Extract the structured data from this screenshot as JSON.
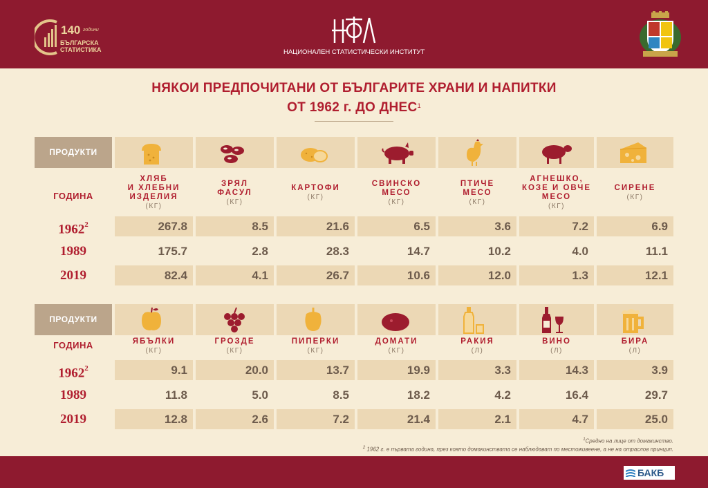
{
  "header": {
    "logo_140": {
      "number": "140",
      "years_word": "години",
      "line1": "БЪЛГАРСКА",
      "line2": "СТАТИСТИКА"
    },
    "institute_name": "НАЦИОНАЛЕН СТАТИСТИЧЕСКИ ИНСТИТУТ"
  },
  "title": {
    "line1": "НЯКОИ ПРЕДПОЧИТАНИ ОТ БЪЛГАРИТЕ ХРАНИ И НАПИТКИ",
    "line2": "ОТ 1962 г. ДО ДНЕС",
    "line2_sup": "1"
  },
  "table1": {
    "products_label": "ПРОДУКТИ",
    "year_label": "ГОДИНА",
    "columns": [
      {
        "icon": "bread-icon",
        "name_lines": [
          "ХЛЯБ",
          "И ХЛЕБНИ",
          "ИЗДЕЛИЯ"
        ],
        "unit": "(КГ)"
      },
      {
        "icon": "beans-icon",
        "name_lines": [
          "ЗРЯЛ",
          "ФАСУЛ"
        ],
        "unit": "(КГ)"
      },
      {
        "icon": "potato-icon",
        "name_lines": [
          "КАРТОФИ"
        ],
        "unit": "(КГ)"
      },
      {
        "icon": "pig-icon",
        "name_lines": [
          "СВИНСКО",
          "МЕСО"
        ],
        "unit": "(КГ)"
      },
      {
        "icon": "chicken-icon",
        "name_lines": [
          "ПТИЧЕ",
          "МЕСО"
        ],
        "unit": "(КГ)"
      },
      {
        "icon": "sheep-icon",
        "name_lines": [
          "АГНЕШКО,",
          "КОЗЕ И ОВЧЕ",
          "МЕСО"
        ],
        "unit": "(КГ)"
      },
      {
        "icon": "cheese-icon",
        "name_lines": [
          "СИРЕНЕ"
        ],
        "unit": "(КГ)"
      }
    ],
    "rows": [
      {
        "year": "1962",
        "year_sup": "2",
        "values": [
          "267.8",
          "8.5",
          "21.6",
          "6.5",
          "3.6",
          "7.2",
          "6.9"
        ]
      },
      {
        "year": "1989",
        "year_sup": "",
        "values": [
          "175.7",
          "2.8",
          "28.3",
          "14.7",
          "10.2",
          "4.0",
          "11.1"
        ]
      },
      {
        "year": "2019",
        "year_sup": "",
        "values": [
          "82.4",
          "4.1",
          "26.7",
          "10.6",
          "12.0",
          "1.3",
          "12.1"
        ]
      }
    ]
  },
  "table2": {
    "products_label": "ПРОДУКТИ",
    "year_label": "ГОДИНА",
    "columns": [
      {
        "icon": "apple-icon",
        "name_lines": [
          "ЯБЪЛКИ"
        ],
        "unit": "(КГ)"
      },
      {
        "icon": "grapes-icon",
        "name_lines": [
          "ГРОЗДЕ"
        ],
        "unit": "(КГ)"
      },
      {
        "icon": "pepper-icon",
        "name_lines": [
          "ПИПЕРКИ"
        ],
        "unit": "(КГ)"
      },
      {
        "icon": "tomato-icon",
        "name_lines": [
          "ДОМАТИ"
        ],
        "unit": "(КГ)"
      },
      {
        "icon": "rakia-bottle-icon",
        "name_lines": [
          "РАКИЯ"
        ],
        "unit": "(Л)"
      },
      {
        "icon": "wine-icon",
        "name_lines": [
          "ВИНО"
        ],
        "unit": "(Л)"
      },
      {
        "icon": "beer-icon",
        "name_lines": [
          "БИРА"
        ],
        "unit": "(Л)"
      }
    ],
    "rows": [
      {
        "year": "1962",
        "year_sup": "2",
        "values": [
          "9.1",
          "20.0",
          "13.7",
          "19.9",
          "3.3",
          "14.3",
          "3.9"
        ]
      },
      {
        "year": "1989",
        "year_sup": "",
        "values": [
          "11.8",
          "5.0",
          "8.5",
          "18.2",
          "4.2",
          "16.4",
          "29.7"
        ]
      },
      {
        "year": "2019",
        "year_sup": "",
        "values": [
          "12.8",
          "2.6",
          "7.2",
          "21.4",
          "2.1",
          "4.7",
          "25.0"
        ]
      }
    ]
  },
  "footnotes": {
    "note1_sup": "1",
    "note1": "Средно на лице от домакинство.",
    "note2_sup": "2",
    "note2": "1962 г. е първата година, през която домакинствата се наблюдават по местоживеене, а не на отраслов принцип."
  },
  "footer": {
    "bakb": "БАКБ"
  },
  "colors": {
    "brand_red": "#8e1a2f",
    "title_red": "#b01e2f",
    "cream": "#f7edd7",
    "cell_beige": "#ecd8b5",
    "icon_red": "#9c1c2e",
    "icon_gold": "#f0b23b"
  }
}
